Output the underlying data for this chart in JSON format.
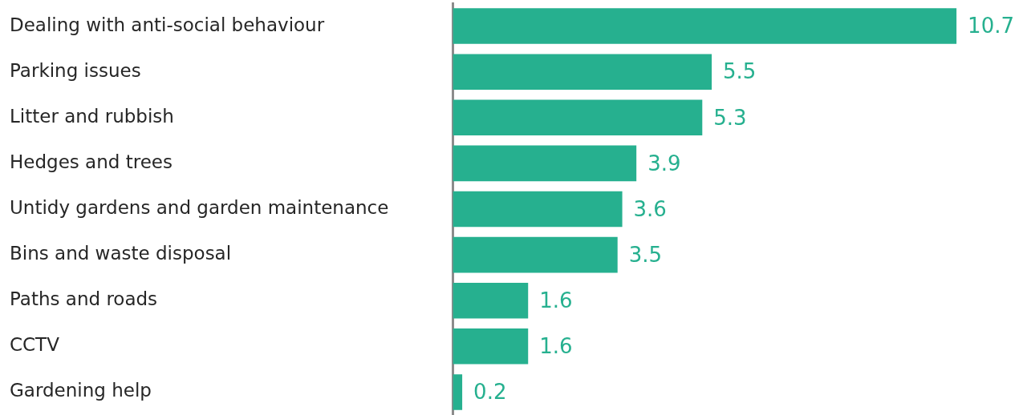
{
  "chart_data": {
    "type": "bar",
    "orientation": "horizontal",
    "categories": [
      "Dealing with anti-social behaviour",
      "Parking issues",
      "Litter and rubbish",
      "Hedges and trees",
      "Untidy gardens and garden maintenance",
      "Bins and waste disposal",
      "Paths and roads",
      "CCTV",
      "Gardening help"
    ],
    "values": [
      10.7,
      5.5,
      5.3,
      3.9,
      3.6,
      3.5,
      1.6,
      1.6,
      0.2
    ],
    "color": "#26b08f",
    "data_labels": true
  }
}
